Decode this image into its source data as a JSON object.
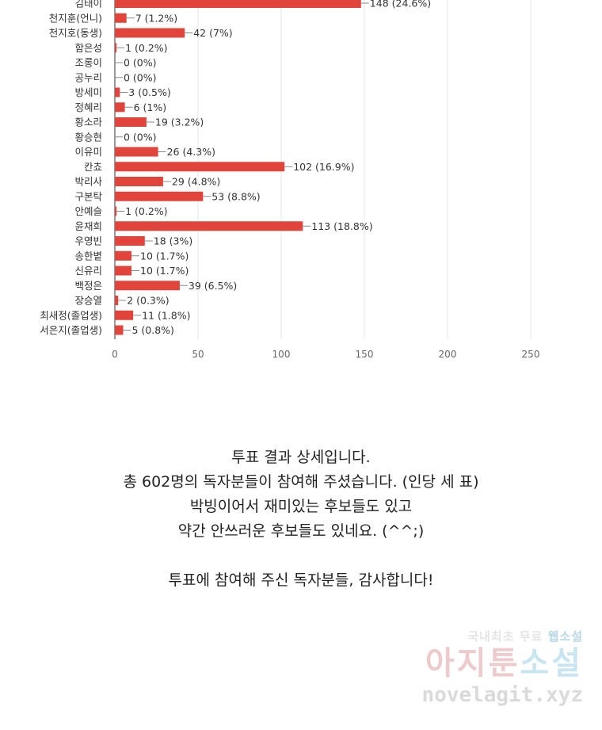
{
  "chart_data": {
    "type": "bar",
    "orientation": "horizontal",
    "categories": [
      "김태이",
      "천지훈(언니)",
      "천지호(동생)",
      "함은성",
      "조롱이",
      "공누리",
      "방세미",
      "정혜리",
      "황소라",
      "황승현",
      "이유미",
      "칸쵸",
      "박리사",
      "구본탁",
      "안예슬",
      "윤재희",
      "우영빈",
      "송한볕",
      "신유리",
      "백정은",
      "장승열",
      "최새정(졸업생)",
      "서은지(졸업생)"
    ],
    "values": [
      148,
      7,
      42,
      1,
      0,
      0,
      3,
      6,
      19,
      0,
      26,
      102,
      29,
      53,
      1,
      113,
      18,
      10,
      10,
      39,
      2,
      11,
      5
    ],
    "data_labels": [
      "148 (24.6%)",
      "7 (1.2%)",
      "42 (7%)",
      "1 (0.2%)",
      "0 (0%)",
      "0 (0%)",
      "3 (0.5%)",
      "6 (1%)",
      "19 (3.2%)",
      "0 (0%)",
      "26 (4.3%)",
      "102 (16.9%)",
      "29 (4.8%)",
      "53 (8.8%)",
      "1 (0.2%)",
      "113 (18.8%)",
      "18 (3%)",
      "10 (1.7%)",
      "10 (1.7%)",
      "39 (6.5%)",
      "2 (0.3%)",
      "11 (1.8%)",
      "5 (0.8%)"
    ],
    "x_ticks": [
      0,
      50,
      100,
      150,
      200,
      250
    ],
    "x_tick_labels": [
      "0",
      "50",
      "100",
      "150",
      "200",
      "250"
    ],
    "xlim": [
      0,
      250
    ],
    "grid": true,
    "bar_color": "#e0443b",
    "title": "",
    "xlabel": "",
    "ylabel": ""
  },
  "caption": {
    "line1": "투표 결과 상세입니다.",
    "line2": "총 602명의 독자분들이 참여해 주셨습니다. (인당 세 표)",
    "line3": "박빙이어서 재미있는 후보들도 있고",
    "line4": "약간 안쓰러운 후보들도 있네요. (^^;)",
    "line5": "투표에 참여해 주신 독자분들, 감사합니다!"
  },
  "watermark": {
    "top_left": "국내최초 무료",
    "top_right": "웹소설",
    "main_left": "아지툰",
    "main_right": "소설",
    "url": "novelagit.xyz"
  }
}
